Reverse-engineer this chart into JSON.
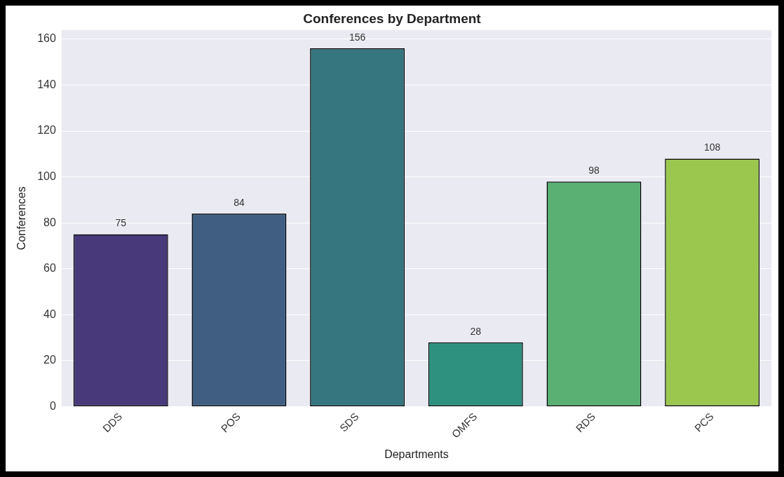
{
  "chart_data": {
    "type": "bar",
    "title": "Conferences by Department",
    "xlabel": "Departments",
    "ylabel": "Conferences",
    "categories": [
      "DDS",
      "POS",
      "SDS",
      "OMFS",
      "RDS",
      "PCS"
    ],
    "values": [
      75,
      84,
      156,
      28,
      98,
      108
    ],
    "colors": [
      "#48397a",
      "#3f5e82",
      "#35767f",
      "#2e9180",
      "#59b072",
      "#9bc74f"
    ],
    "ylim": [
      0,
      164
    ],
    "yticks": [
      0,
      20,
      40,
      60,
      80,
      100,
      120,
      140,
      160
    ],
    "grid": "y",
    "data_labels": true,
    "legend": false
  }
}
